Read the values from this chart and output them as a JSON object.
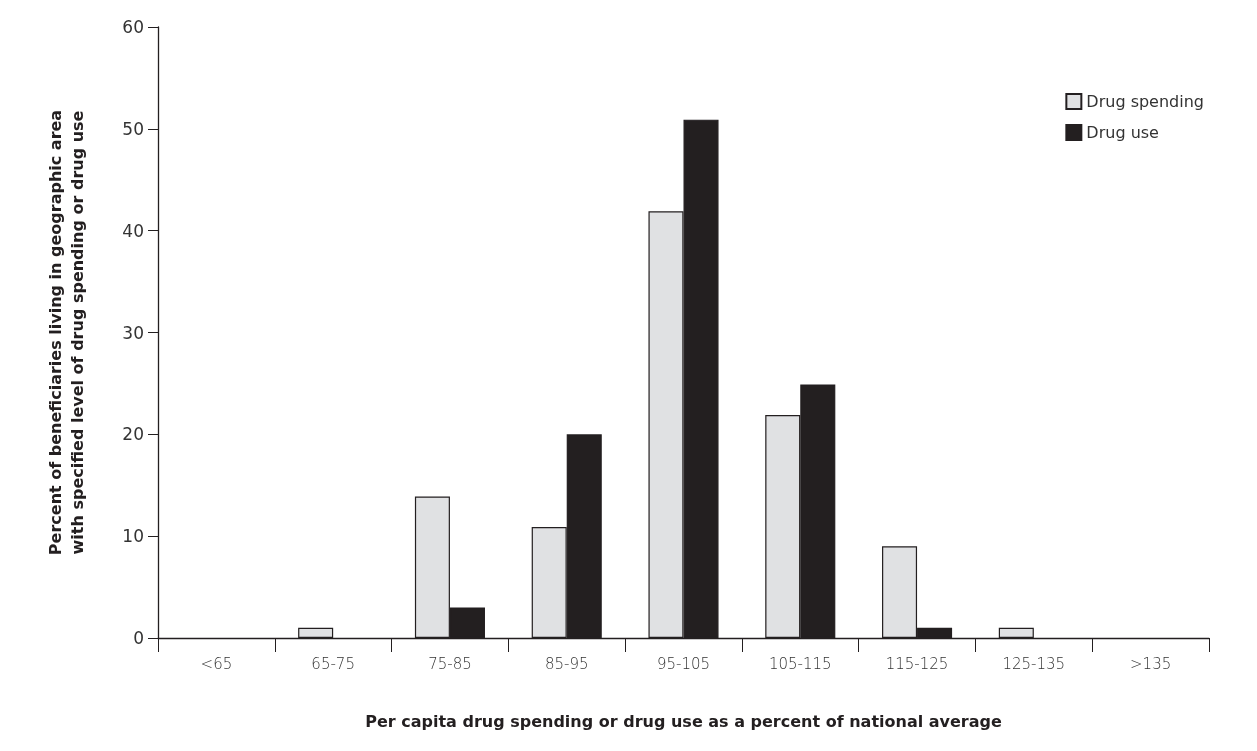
{
  "chart_data": {
    "type": "bar",
    "xlabel": "Per capita drug spending or drug use as a percent of national average",
    "ylabel": "Percent of beneficiaries living in geographic area\nwith specified level of drug spending or drug use",
    "categories": [
      "<65",
      "65-75",
      "75-85",
      "85-95",
      "95-105",
      "105-115",
      "115-125",
      "125-135",
      ">135"
    ],
    "series": [
      {
        "name": "Drug spending",
        "color": "#e0e1e3",
        "values": [
          0,
          1,
          13.9,
          10.9,
          41.9,
          21.9,
          9,
          1,
          0
        ]
      },
      {
        "name": "Drug use",
        "color": "#231f20",
        "values": [
          0,
          0,
          3,
          20,
          50.9,
          24.9,
          1,
          0,
          0
        ]
      }
    ],
    "ylim": [
      0,
      60
    ],
    "yticks": [
      0,
      10,
      20,
      30,
      40,
      50,
      60
    ],
    "grid": false,
    "legend": "top right"
  }
}
